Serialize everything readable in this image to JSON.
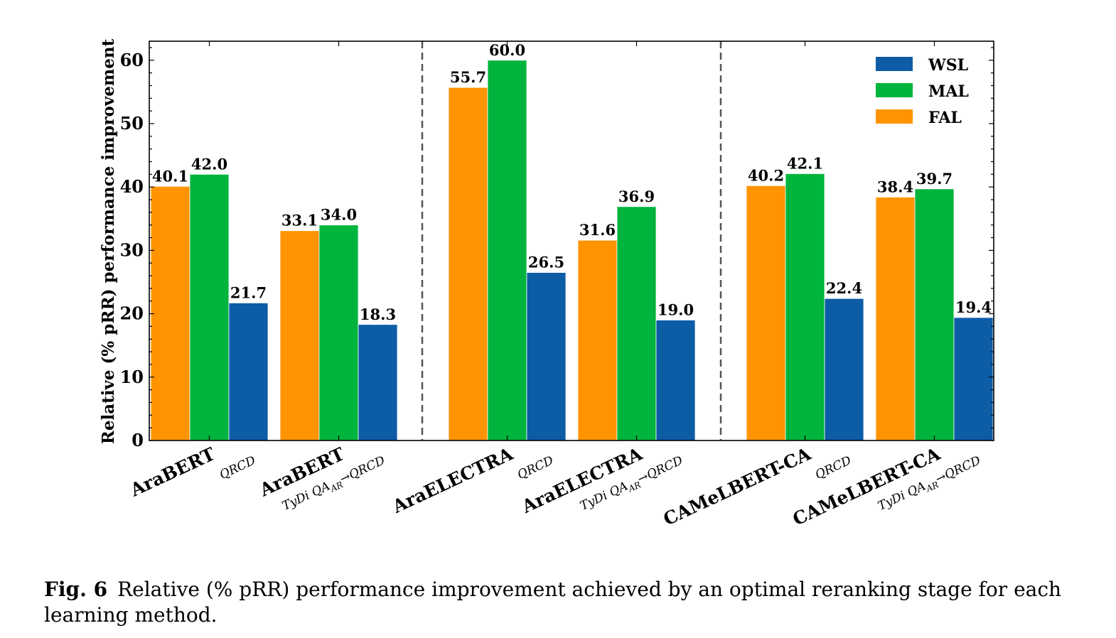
{
  "chart_data": {
    "type": "bar",
    "ylabel": "Relative (% pRR) performance improvement",
    "ylim": [
      0,
      63
    ],
    "yticks": [
      0,
      10,
      20,
      30,
      40,
      50,
      60
    ],
    "categories": [
      {
        "main": "AraBERT",
        "sub": "QRCD"
      },
      {
        "main": "AraBERT",
        "sub": "TyDi QA",
        "sub_sub": "AR",
        "sub_tail": "→QRCD"
      },
      {
        "main": "AraELECTRA",
        "sub": "QRCD"
      },
      {
        "main": "AraELECTRA",
        "sub": "TyDi QA",
        "sub_sub": "AR",
        "sub_tail": "→QRCD"
      },
      {
        "main": "CAMeLBERT-CA",
        "sub": "QRCD"
      },
      {
        "main": "CAMeLBERT-CA",
        "sub": "TyDi QA",
        "sub_sub": "AR",
        "sub_tail": "→QRCD"
      }
    ],
    "series": [
      {
        "name": "FAL",
        "color": "#ff9400",
        "values": [
          40.1,
          33.1,
          55.7,
          31.6,
          40.2,
          38.4
        ]
      },
      {
        "name": "MAL",
        "color": "#00b43d",
        "values": [
          42.0,
          34.0,
          60.0,
          36.9,
          42.1,
          39.7
        ]
      },
      {
        "name": "WSL",
        "color": "#0d5ca6",
        "values": [
          21.7,
          18.3,
          26.5,
          19.0,
          22.4,
          19.4
        ]
      }
    ],
    "legend_order": [
      "WSL",
      "MAL",
      "FAL"
    ],
    "legend_position": "top-right",
    "group_separators": "dashed vertical lines between model families",
    "grid": false
  },
  "caption": {
    "label": "Fig. 6",
    "text": "Relative (% pRR) performance improvement achieved by an optimal reranking stage for each learning method."
  }
}
